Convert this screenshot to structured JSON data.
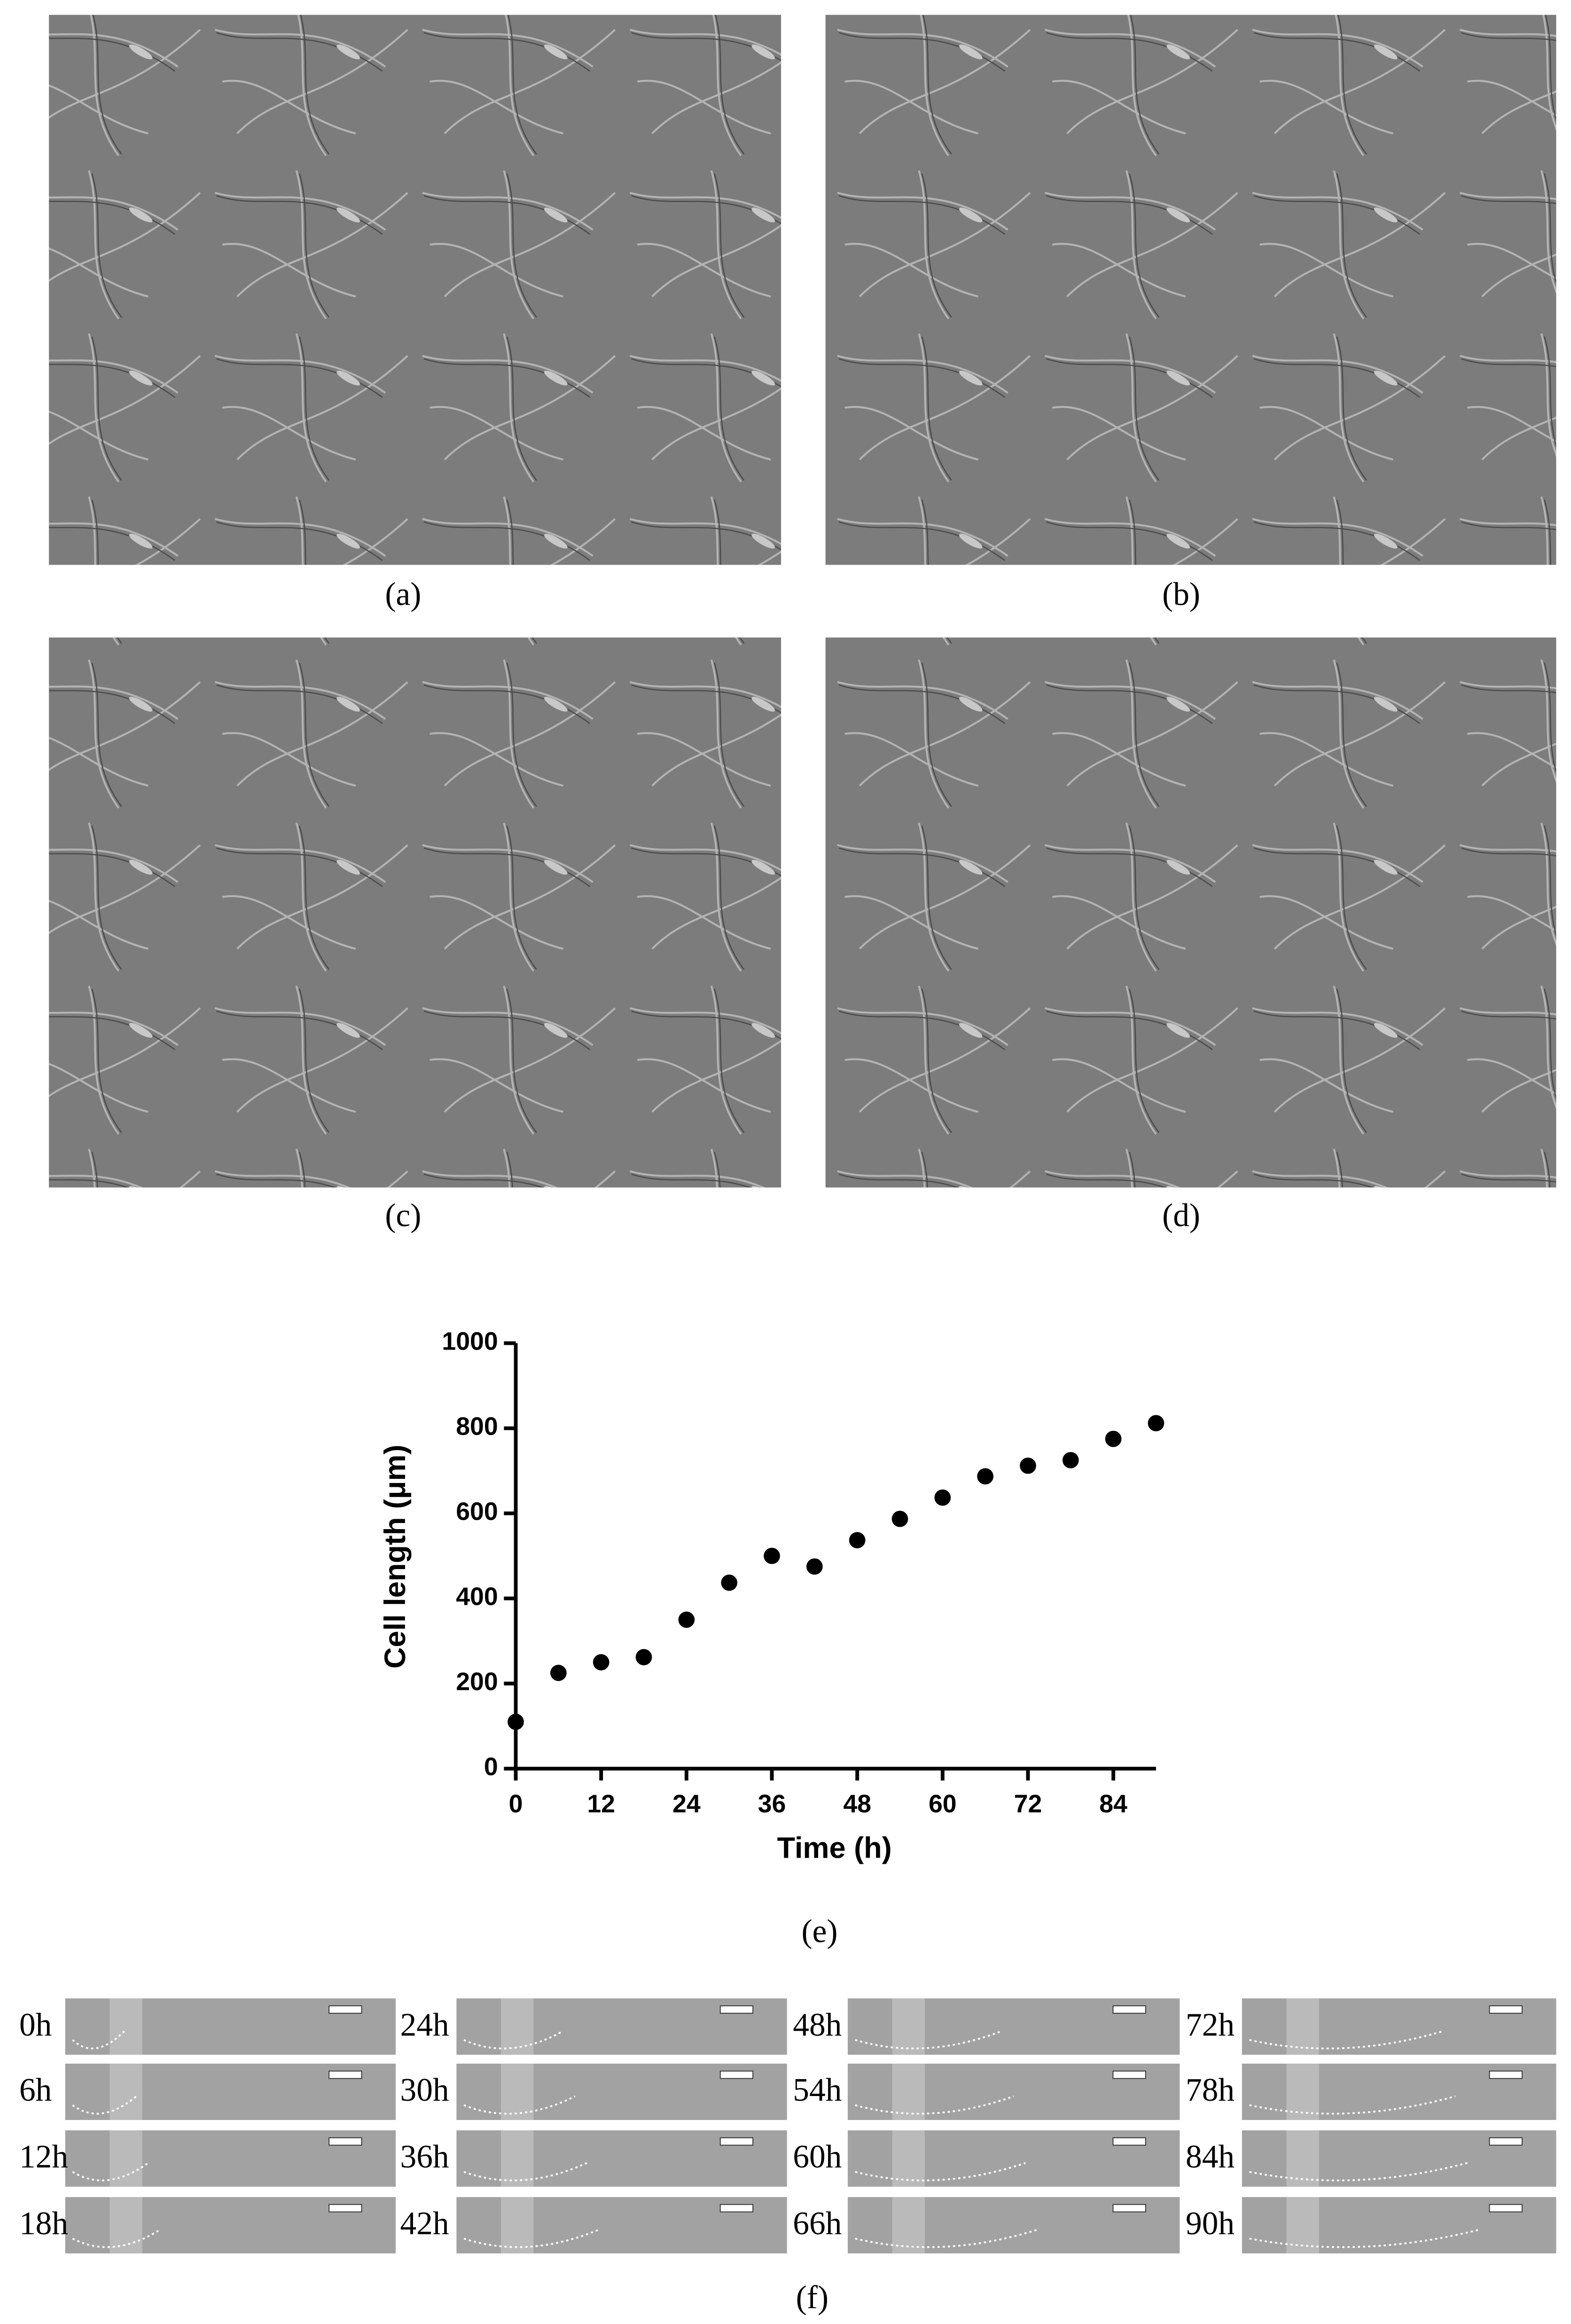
{
  "panels": [
    {
      "label": "(a)"
    },
    {
      "label": "(b)"
    },
    {
      "label": "(c)"
    },
    {
      "label": "(d)"
    }
  ],
  "chart_data": {
    "type": "scatter",
    "x": [
      0,
      6,
      12,
      18,
      24,
      30,
      36,
      42,
      48,
      54,
      60,
      66,
      72,
      78,
      84,
      90
    ],
    "values": [
      110,
      225,
      250,
      262,
      350,
      437,
      500,
      475,
      537,
      587,
      637,
      687,
      712,
      725,
      775,
      812
    ],
    "xlim": [
      0,
      90
    ],
    "ylim": [
      0,
      1000
    ],
    "xticks": [
      0,
      12,
      24,
      36,
      48,
      60,
      72,
      84
    ],
    "yticks": [
      0,
      200,
      400,
      600,
      800,
      1000
    ],
    "xlabel": "Time (h)",
    "ylabel": "Cell length (μm)",
    "color": "#000000"
  },
  "chart_label": "(e)",
  "strips": {
    "label": "(f)",
    "times": [
      "0h",
      "6h",
      "12h",
      "18h",
      "24h",
      "30h",
      "36h",
      "42h",
      "48h",
      "54h",
      "60h",
      "66h",
      "72h",
      "78h",
      "84h",
      "90h"
    ]
  }
}
